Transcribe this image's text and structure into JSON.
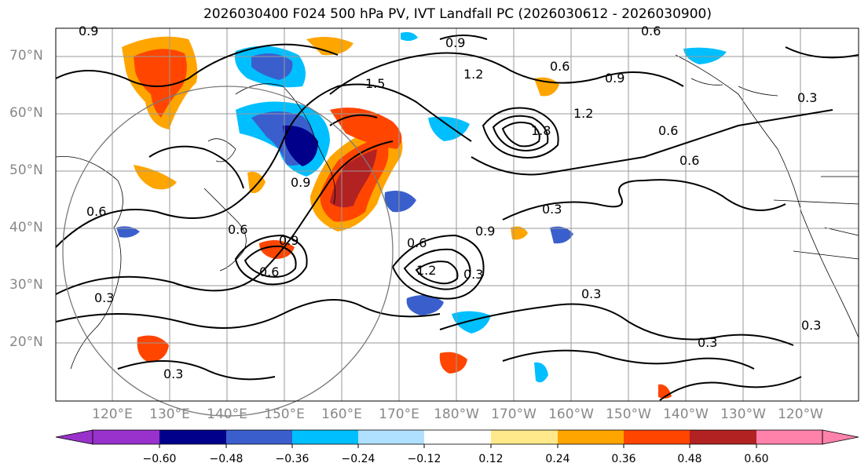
{
  "title": "2026030400 F024 500 hPa PV, IVT Landfall PC (2026030612 - 2026030900)",
  "lat_labels": [
    "70°N",
    "60°N",
    "50°N",
    "40°N",
    "30°N",
    "20°N"
  ],
  "lon_labels": [
    "120°E",
    "130°E",
    "140°E",
    "150°E",
    "160°E",
    "170°E",
    "180°W",
    "170°W",
    "160°W",
    "150°W",
    "140°W",
    "130°W",
    "120°W"
  ],
  "contour_labels": [
    "0.9",
    "0.9",
    "0.6",
    "0.6",
    "0.9",
    "0.3",
    "0.6",
    "0.6",
    "0.3",
    "0.6",
    "0.6",
    "0.9",
    "0.3",
    "0.3",
    "0.3",
    "0.3",
    "0.3",
    "1.2",
    "1.8",
    "0.9",
    "1.5",
    "1.2",
    "0.9",
    "0.6",
    "0.3",
    "1.2",
    "0.6"
  ],
  "colorbar": {
    "colors": [
      "#9932CC",
      "#00008B",
      "#3A5FCD",
      "#00BFFF",
      "#B0E0FF",
      "#FFFFFF",
      "#FFE98A",
      "#FFA500",
      "#FF4500",
      "#B22222",
      "#FF82AB"
    ],
    "tick_labels": [
      "−0.60",
      "−0.48",
      "−0.36",
      "−0.24",
      "−0.12",
      "0.12",
      "0.24",
      "0.36",
      "0.48",
      "0.60"
    ]
  },
  "colors": {
    "positive_strong": "#FF4500",
    "positive_mid": "#FFA500",
    "negative_mid": "#00BFFF",
    "negative_strong": "#3A5FCD",
    "contour": "#000000",
    "grid": "#9a9a9a"
  }
}
